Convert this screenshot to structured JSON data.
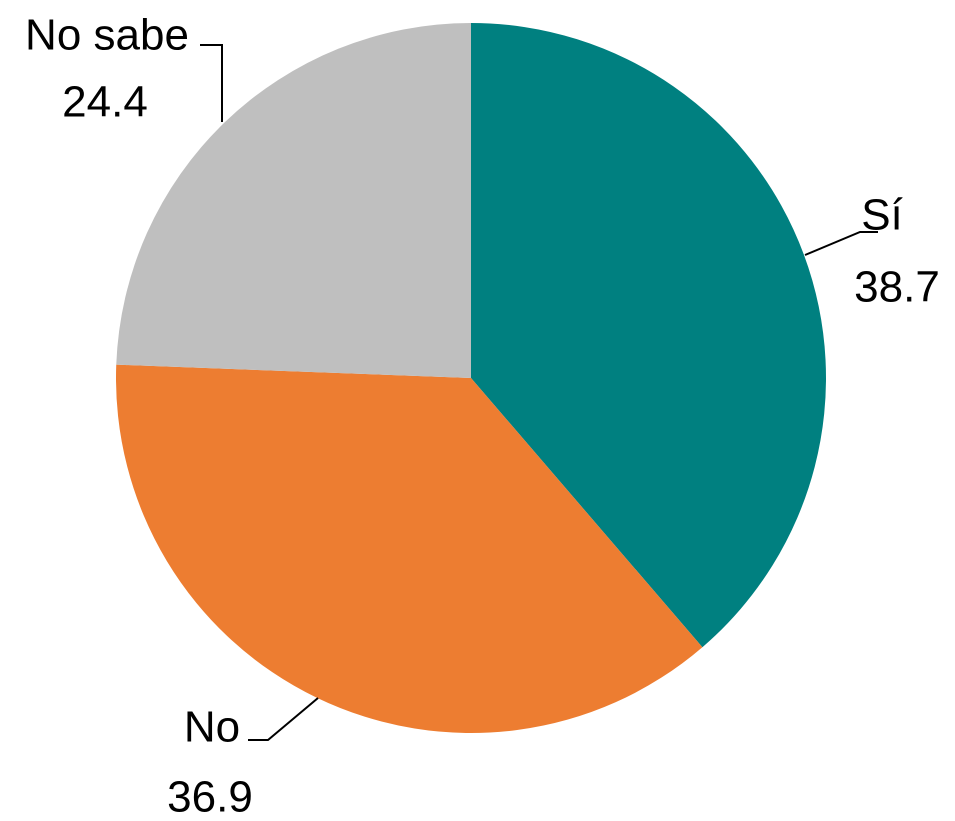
{
  "chart_data": {
    "type": "pie",
    "categories": [
      "Sí",
      "No",
      "No sabe"
    ],
    "values": [
      38.7,
      36.9,
      24.4
    ],
    "colors": [
      "#008080",
      "#ed7d31",
      "#bfbfbf"
    ]
  }
}
